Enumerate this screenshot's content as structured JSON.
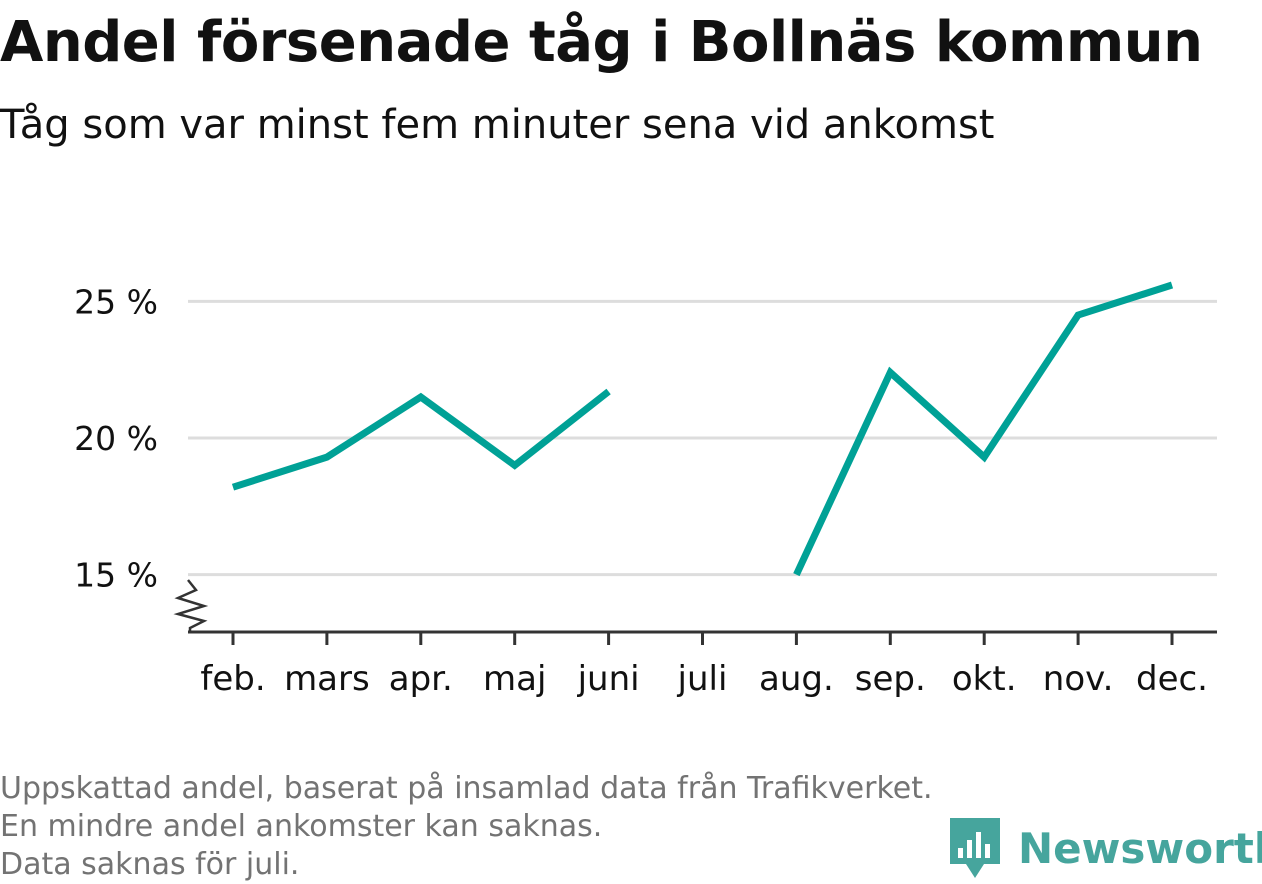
{
  "title": "Andel försenade tåg i Bollnäs kommun",
  "subtitle": "Tåg som var minst fem minuter sena vid ankomst",
  "footnote": {
    "line1": "Uppskattad andel, baserat på insamlad data från Trafikverket. En mindre andel ankomster kan saknas.",
    "line2": "Data saknas för juli."
  },
  "brand": {
    "name": "Newsworthy",
    "logo_icon": "newsworthy-logo-icon"
  },
  "colors": {
    "line": "#00a196",
    "grid": "#dddddd",
    "axis": "#333333",
    "text": "#111111",
    "muted": "#737373",
    "brand": "#46a59d"
  },
  "chart_data": {
    "type": "line",
    "categories": [
      "feb.",
      "mars",
      "apr.",
      "maj",
      "juni",
      "juli",
      "aug.",
      "sep.",
      "okt.",
      "nov.",
      "dec."
    ],
    "series": [
      {
        "values": [
          18.2,
          19.3,
          21.5,
          19.0,
          21.7,
          null,
          15.0,
          22.4,
          19.3,
          24.5,
          25.6
        ]
      }
    ],
    "ylim": [
      12.9,
      25.6
    ],
    "yticks": [
      15,
      20,
      25
    ],
    "ytick_labels": [
      "15 %",
      "20 %",
      "25 %"
    ],
    "y_axis_break": true,
    "grid": true,
    "xlabel": "",
    "ylabel": ""
  }
}
